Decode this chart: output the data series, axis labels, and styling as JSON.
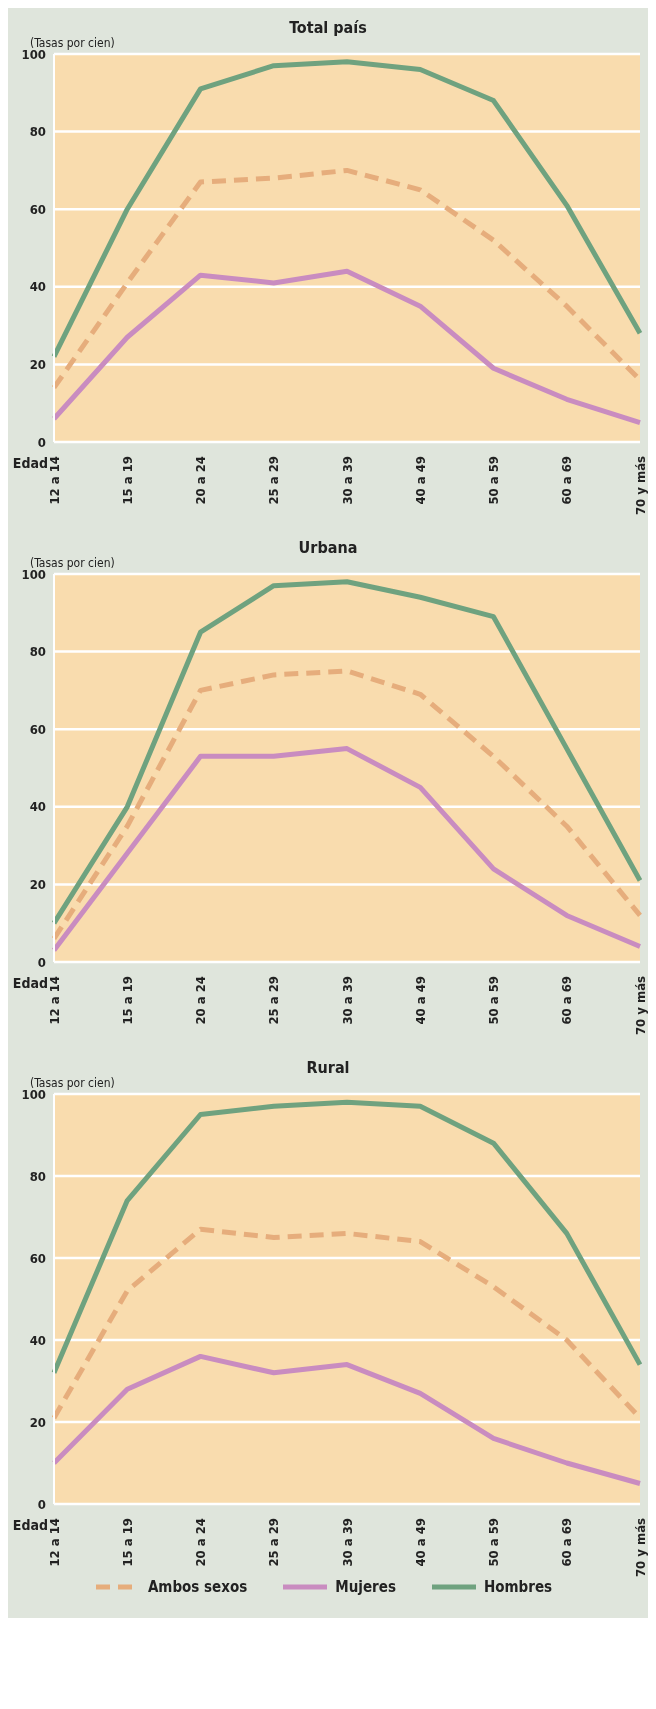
{
  "chart_data": [
    {
      "type": "line",
      "title": "Total país",
      "ylabel": "(Tasas por cien)",
      "xlabel": "Edad",
      "categories": [
        "12 a 14",
        "15 a 19",
        "20 a 24",
        "25 a 29",
        "30 a 39",
        "40 a 49",
        "50 a 59",
        "60 a 69",
        "70 y más"
      ],
      "ylim": [
        0,
        100
      ],
      "yticks": [
        0,
        20,
        40,
        60,
        80,
        100
      ],
      "grid": "y",
      "marker": "none",
      "legend": false,
      "series": [
        {
          "color": "#e6ad7c",
          "line_style": "dashed",
          "values": [
            14,
            41,
            67,
            68,
            70,
            65,
            52,
            35,
            16
          ]
        },
        {
          "color": "#c98cc0",
          "line_style": "solid",
          "values": [
            6,
            27,
            43,
            41,
            44,
            35,
            19,
            11,
            5
          ]
        },
        {
          "color": "#6fa27f",
          "line_style": "solid",
          "values": [
            22,
            60,
            91,
            97,
            98,
            96,
            88,
            61,
            28
          ]
        }
      ]
    },
    {
      "type": "line",
      "title": "Urbana",
      "ylabel": "(Tasas por cien)",
      "xlabel": "Edad",
      "categories": [
        "12 a 14",
        "15 a 19",
        "20 a 24",
        "25 a 29",
        "30 a 39",
        "40 a 49",
        "50 a 59",
        "60 a 69",
        "70 y más"
      ],
      "ylim": [
        0,
        100
      ],
      "yticks": [
        0,
        20,
        40,
        60,
        80,
        100
      ],
      "grid": "y",
      "marker": "none",
      "legend": false,
      "series": [
        {
          "color": "#e6ad7c",
          "line_style": "dashed",
          "values": [
            6,
            35,
            70,
            74,
            75,
            69,
            53,
            35,
            12
          ]
        },
        {
          "color": "#c98cc0",
          "line_style": "solid",
          "values": [
            3,
            28,
            53,
            53,
            55,
            45,
            24,
            12,
            4
          ]
        },
        {
          "color": "#6fa27f",
          "line_style": "solid",
          "values": [
            10,
            40,
            85,
            97,
            98,
            94,
            89,
            55,
            21
          ]
        }
      ]
    },
    {
      "type": "line",
      "title": "Rural",
      "ylabel": "(Tasas por cien)",
      "xlabel": "Edad",
      "categories": [
        "12 a 14",
        "15 a 19",
        "20 a 24",
        "25 a 29",
        "30 a 39",
        "40 a 49",
        "50 a 59",
        "60 a 69",
        "70 y más"
      ],
      "ylim": [
        0,
        100
      ],
      "yticks": [
        0,
        20,
        40,
        60,
        80,
        100
      ],
      "grid": "y",
      "marker": "none",
      "legend": "bottom",
      "series": [
        {
          "name": "Ambos sexos",
          "color": "#e6ad7c",
          "line_style": "dashed",
          "values": [
            21,
            52,
            67,
            65,
            66,
            64,
            53,
            40,
            21
          ]
        },
        {
          "name": "Mujeres",
          "color": "#c98cc0",
          "line_style": "solid",
          "values": [
            10,
            28,
            36,
            32,
            34,
            27,
            16,
            10,
            5
          ]
        },
        {
          "name": "Hombres",
          "color": "#6fa27f",
          "line_style": "solid",
          "values": [
            32,
            74,
            95,
            97,
            98,
            97,
            88,
            66,
            34
          ]
        }
      ]
    }
  ]
}
